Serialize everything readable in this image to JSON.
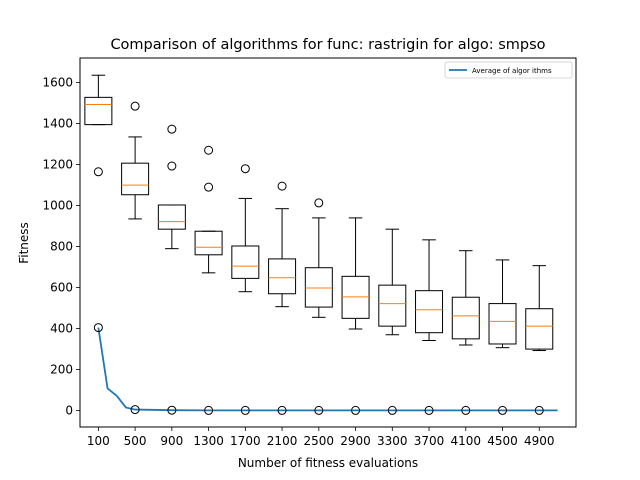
{
  "chart_data": {
    "type": "box",
    "title": "Comparison of algorithms for func: rastrigin for algo: smpso",
    "xlabel": "Number of fitness evaluations",
    "ylabel": "Fitness",
    "ylim": [
      -80,
      1720
    ],
    "yticks": [
      0,
      200,
      400,
      600,
      800,
      1000,
      1200,
      1400,
      1600
    ],
    "categories": [
      "100",
      "500",
      "900",
      "1300",
      "1700",
      "2100",
      "2500",
      "2900",
      "3300",
      "3700",
      "4100",
      "4500",
      "4900"
    ],
    "boxes": [
      {
        "x": 100,
        "whislo": 1395,
        "q1": 1395,
        "med": 1493,
        "q3": 1528,
        "whishi": 1636,
        "fliers": [
          1165
        ]
      },
      {
        "x": 500,
        "whislo": 935,
        "q1": 1053,
        "med": 1100,
        "q3": 1207,
        "whishi": 1335,
        "fliers": [
          1485
        ]
      },
      {
        "x": 900,
        "whislo": 790,
        "q1": 885,
        "med": 922,
        "q3": 1003,
        "whishi": 1003,
        "fliers": [
          1373,
          1193
        ]
      },
      {
        "x": 1300,
        "whislo": 672,
        "q1": 760,
        "med": 797,
        "q3": 875,
        "whishi": 875,
        "fliers": [
          1270,
          1090
        ]
      },
      {
        "x": 1700,
        "whislo": 580,
        "q1": 645,
        "med": 705,
        "q3": 803,
        "whishi": 1035,
        "fliers": [
          1180
        ]
      },
      {
        "x": 2100,
        "whislo": 507,
        "q1": 570,
        "med": 648,
        "q3": 740,
        "whishi": 985,
        "fliers": [
          1095
        ]
      },
      {
        "x": 2500,
        "whislo": 455,
        "q1": 505,
        "med": 598,
        "q3": 697,
        "whishi": 940,
        "fliers": [
          1013
        ]
      },
      {
        "x": 2900,
        "whislo": 398,
        "q1": 450,
        "med": 555,
        "q3": 655,
        "whishi": 940,
        "fliers": []
      },
      {
        "x": 3300,
        "whislo": 370,
        "q1": 412,
        "med": 522,
        "q3": 612,
        "whishi": 885,
        "fliers": []
      },
      {
        "x": 3700,
        "whislo": 342,
        "q1": 380,
        "med": 492,
        "q3": 585,
        "whishi": 833,
        "fliers": []
      },
      {
        "x": 4100,
        "whislo": 320,
        "q1": 350,
        "med": 462,
        "q3": 553,
        "whishi": 780,
        "fliers": []
      },
      {
        "x": 4500,
        "whislo": 307,
        "q1": 325,
        "med": 435,
        "q3": 522,
        "whishi": 735,
        "fliers": []
      },
      {
        "x": 4900,
        "whislo": 293,
        "q1": 300,
        "med": 412,
        "q3": 497,
        "whishi": 707,
        "fliers": []
      }
    ],
    "bottom_box_fliers": [
      {
        "x": 100,
        "values": [
          405
        ]
      },
      {
        "x": 500,
        "values": [
          5
        ]
      },
      {
        "x": 900,
        "values": [
          2
        ]
      },
      {
        "x": 1300,
        "values": [
          1
        ]
      },
      {
        "x": 1700,
        "values": [
          1
        ]
      },
      {
        "x": 2100,
        "values": [
          1
        ]
      },
      {
        "x": 2500,
        "values": [
          1
        ]
      },
      {
        "x": 2900,
        "values": [
          1
        ]
      },
      {
        "x": 3300,
        "values": [
          1
        ]
      },
      {
        "x": 3700,
        "values": [
          1
        ]
      },
      {
        "x": 4100,
        "values": [
          1
        ]
      },
      {
        "x": 4500,
        "values": [
          1
        ]
      },
      {
        "x": 4900,
        "values": [
          1
        ]
      }
    ],
    "series": [
      {
        "name": "Average of algor ithms",
        "color": "#1f77b4",
        "x": [
          100,
          200,
          300,
          400,
          500,
          900,
          1300,
          1700,
          2100,
          2500,
          2900,
          3300,
          3700,
          4100,
          4500,
          4900,
          5100
        ],
        "y": [
          405,
          108,
          72,
          15,
          5,
          2,
          1,
          1,
          1,
          1,
          1,
          1,
          1,
          1,
          1,
          1,
          1
        ]
      }
    ],
    "legend_position": "top-right",
    "grid": false,
    "colors": {
      "box": "#000000",
      "median": "#ff7f0e",
      "line": "#1f77b4"
    }
  }
}
